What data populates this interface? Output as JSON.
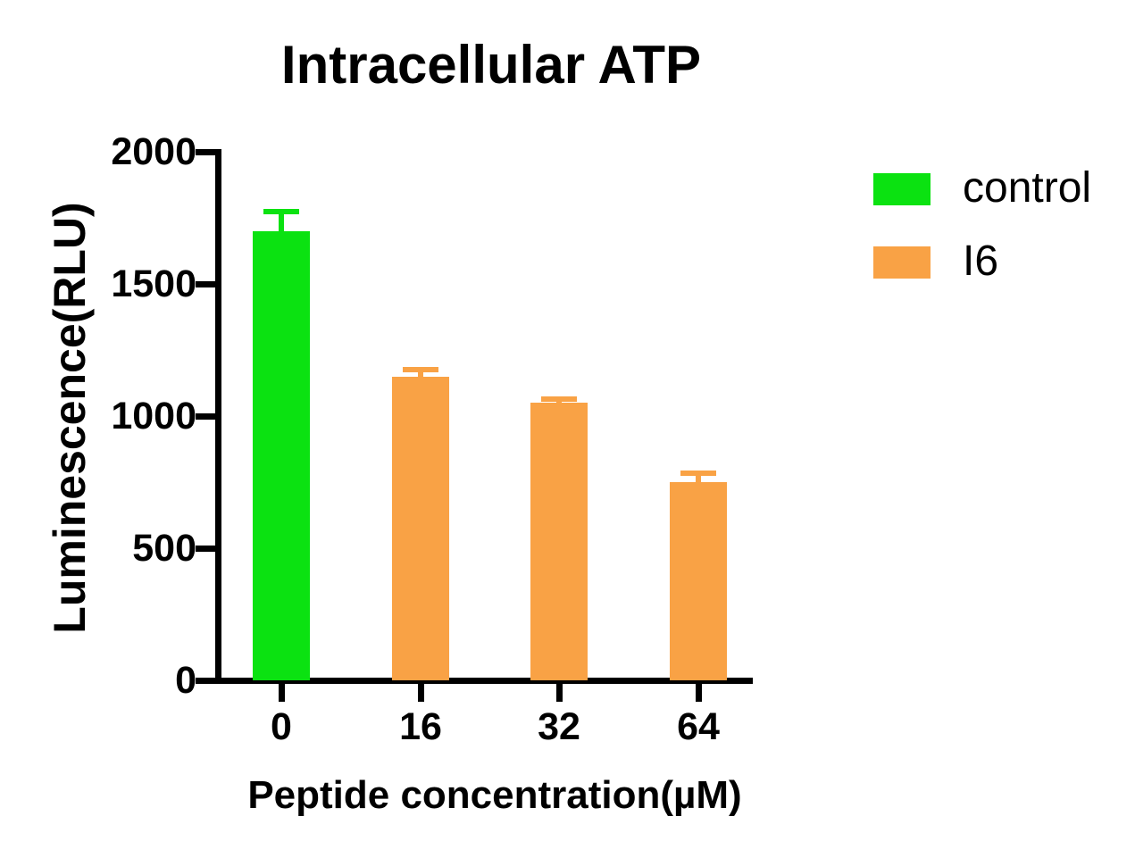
{
  "chart_data": {
    "type": "bar",
    "title": "Intracellular ATP",
    "ylabel": "Luminescence(RLU)",
    "xlabel": "Peptide concentration(µM)",
    "categories": [
      "0",
      "16",
      "32",
      "64"
    ],
    "bars": [
      {
        "category": "0",
        "series": "control",
        "value": 1700,
        "error_plus": 75
      },
      {
        "category": "16",
        "series": "I6",
        "value": 1150,
        "error_plus": 25
      },
      {
        "category": "32",
        "series": "I6",
        "value": 1050,
        "error_plus": 15
      },
      {
        "category": "64",
        "series": "I6",
        "value": 750,
        "error_plus": 35
      }
    ],
    "legend": [
      {
        "label": "control",
        "color": "#0BE211"
      },
      {
        "label": "I6",
        "color": "#F9A245"
      }
    ],
    "ylim": [
      0,
      2000
    ],
    "yticks": [
      0,
      500,
      1000,
      1500,
      2000
    ],
    "grid": false,
    "legend_position": "right",
    "axis_color": "#000000",
    "error_bars": "upper whisker with cap, drawn in series color"
  }
}
